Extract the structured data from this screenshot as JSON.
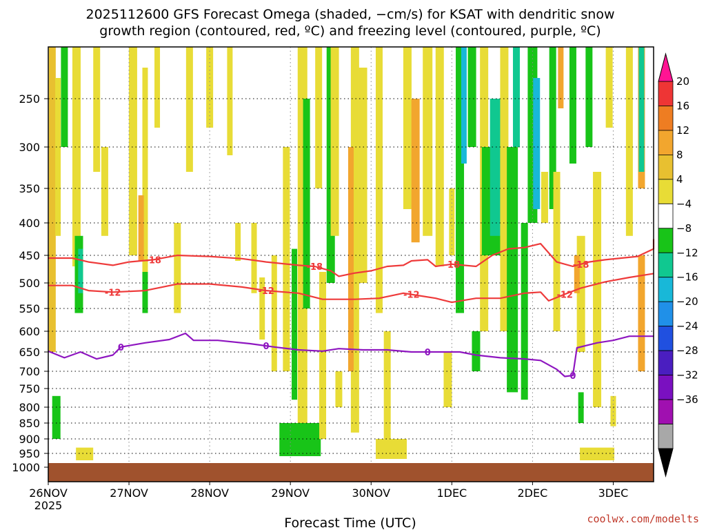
{
  "title": {
    "line1": "2025112600 GFS Forecast Omega (shaded, −cm/s) for KSAT with dendritic snow",
    "line2": "growth region (contoured, red, ºC) and freezing level (contoured, purple, ºC)"
  },
  "credit": "coolwx.com/modelts",
  "chart_data": {
    "type": "heatmap",
    "xlabel": "Forecast Time (UTC)",
    "x_ticks": [
      "26NOV",
      "27NOV",
      "28NOV",
      "29NOV",
      "30NOV",
      "1DEC",
      "2DEC",
      "3DEC"
    ],
    "x_year_label": "2025",
    "x_range_days": [
      0,
      7.5
    ],
    "y_ticks": [
      250,
      300,
      350,
      400,
      450,
      500,
      550,
      600,
      650,
      700,
      750,
      800,
      850,
      900,
      950,
      1000
    ],
    "y_range_hpa": [
      200,
      1025
    ],
    "grid": "dotted",
    "colorbar": {
      "labels": [
        "20",
        "16",
        "12",
        "8",
        "4",
        "−4",
        "−8",
        "−12",
        "−16",
        "−20",
        "−24",
        "−28",
        "−32",
        "−36"
      ],
      "colors": [
        "#ff1493",
        "#ee3535",
        "#ee7d22",
        "#f2a62e",
        "#e8c030",
        "#e8dc36",
        "#ffffff",
        "#18c418",
        "#10c890",
        "#18b8d8",
        "#2090e8",
        "#2050e0",
        "#4a1ec0",
        "#7a10c0",
        "#a010b0",
        "#a8a8a8",
        "#000000"
      ]
    },
    "contours": {
      "dgz_minus18": {
        "color": "#ee3a3a",
        "label": "-18",
        "label_days": [
          1.3,
          3.3,
          5.0,
          6.6
        ],
        "points": [
          [
            0.0,
            455
          ],
          [
            0.3,
            455
          ],
          [
            0.5,
            462
          ],
          [
            0.8,
            468
          ],
          [
            1.0,
            462
          ],
          [
            1.3,
            458
          ],
          [
            1.6,
            450
          ],
          [
            2.0,
            452
          ],
          [
            2.4,
            456
          ],
          [
            2.7,
            462
          ],
          [
            2.9,
            465
          ],
          [
            3.1,
            468
          ],
          [
            3.3,
            470
          ],
          [
            3.5,
            478
          ],
          [
            3.6,
            488
          ],
          [
            3.8,
            482
          ],
          [
            4.0,
            478
          ],
          [
            4.2,
            470
          ],
          [
            4.4,
            468
          ],
          [
            4.5,
            460
          ],
          [
            4.7,
            458
          ],
          [
            4.8,
            470
          ],
          [
            5.0,
            466
          ],
          [
            5.3,
            470
          ],
          [
            5.5,
            450
          ],
          [
            5.7,
            440
          ],
          [
            5.9,
            438
          ],
          [
            6.1,
            432
          ],
          [
            6.3,
            462
          ],
          [
            6.5,
            470
          ],
          [
            6.7,
            462
          ],
          [
            6.9,
            458
          ],
          [
            7.1,
            455
          ],
          [
            7.3,
            452
          ],
          [
            7.5,
            440
          ],
          [
            7.5,
            425
          ]
        ]
      },
      "dgz_minus12": {
        "color": "#ee3a3a",
        "label": "-12",
        "label_days": [
          0.8,
          2.7,
          4.5,
          6.4
        ],
        "points": [
          [
            0.0,
            505
          ],
          [
            0.3,
            505
          ],
          [
            0.5,
            515
          ],
          [
            0.8,
            518
          ],
          [
            1.2,
            515
          ],
          [
            1.6,
            502
          ],
          [
            2.0,
            502
          ],
          [
            2.4,
            508
          ],
          [
            2.7,
            515
          ],
          [
            3.1,
            520
          ],
          [
            3.4,
            532
          ],
          [
            3.8,
            532
          ],
          [
            4.1,
            530
          ],
          [
            4.4,
            520
          ],
          [
            4.6,
            525
          ],
          [
            4.8,
            530
          ],
          [
            5.0,
            538
          ],
          [
            5.3,
            530
          ],
          [
            5.6,
            530
          ],
          [
            5.9,
            520
          ],
          [
            6.1,
            518
          ],
          [
            6.2,
            535
          ],
          [
            6.4,
            522
          ],
          [
            6.6,
            510
          ],
          [
            6.9,
            498
          ],
          [
            7.2,
            490
          ],
          [
            7.5,
            483
          ]
        ]
      },
      "freezing_0": {
        "color": "#8e16c0",
        "label": "0",
        "label_days": [
          0.9,
          2.7,
          4.7,
          6.5
        ],
        "points": [
          [
            0.0,
            648
          ],
          [
            0.2,
            665
          ],
          [
            0.4,
            650
          ],
          [
            0.6,
            668
          ],
          [
            0.8,
            658
          ],
          [
            0.9,
            638
          ],
          [
            1.2,
            628
          ],
          [
            1.5,
            620
          ],
          [
            1.7,
            605
          ],
          [
            1.8,
            622
          ],
          [
            2.1,
            622
          ],
          [
            2.5,
            630
          ],
          [
            2.8,
            638
          ],
          [
            3.1,
            645
          ],
          [
            3.4,
            648
          ],
          [
            3.6,
            642
          ],
          [
            3.9,
            645
          ],
          [
            4.2,
            645
          ],
          [
            4.5,
            650
          ],
          [
            4.8,
            650
          ],
          [
            5.1,
            650
          ],
          [
            5.3,
            658
          ],
          [
            5.6,
            665
          ],
          [
            5.9,
            668
          ],
          [
            6.1,
            672
          ],
          [
            6.3,
            695
          ],
          [
            6.4,
            715
          ],
          [
            6.5,
            712
          ],
          [
            6.55,
            640
          ],
          [
            6.8,
            628
          ],
          [
            7.0,
            622
          ],
          [
            7.2,
            612
          ],
          [
            7.5,
            612
          ]
        ]
      }
    },
    "shading": {
      "description": "omega field shaded by colorbar; yellow/orange = weak-to-moderate ascent, green/cyan/blue = descent"
    }
  }
}
